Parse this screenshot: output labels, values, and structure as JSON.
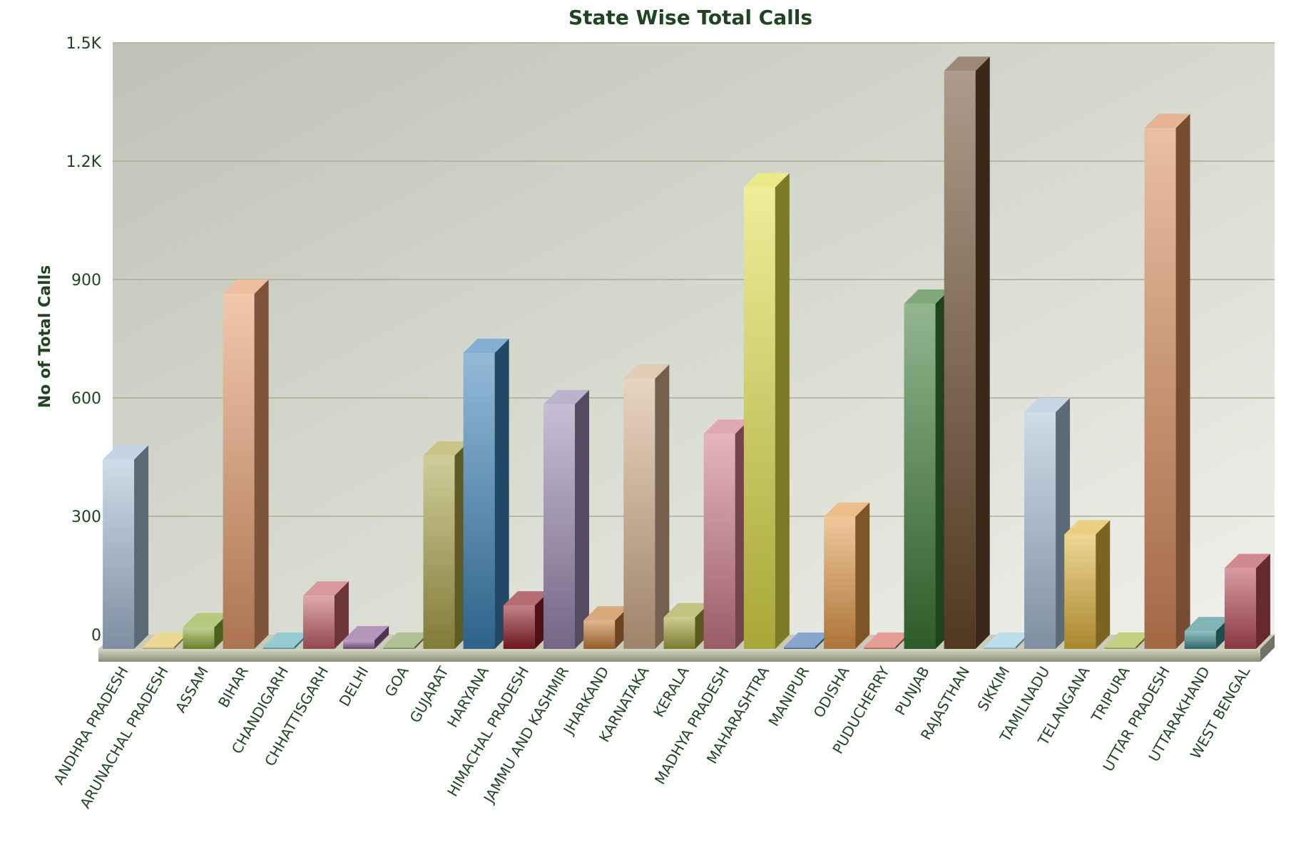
{
  "chart_data": {
    "type": "bar",
    "title": "State Wise Total Calls",
    "xlabel": "",
    "ylabel": "No of Total Calls",
    "ylim": [
      0,
      1500
    ],
    "yticks": [
      "0",
      "300",
      "600",
      "900",
      "1.2K",
      "1.5K"
    ],
    "grid": true,
    "legend": "none",
    "style": "3d-column",
    "categories": [
      "ANDHRA PRADESH",
      "ARUNACHAL PRADESH",
      "ASSAM",
      "BIHAR",
      "CHANDIGARH",
      "CHHATTISGARH",
      "DELHI",
      "GOA",
      "GUJARAT",
      "HARYANA",
      "HIMACHAL PRADESH",
      "JAMMU AND KASHMIR",
      "JHARKAND",
      "KARNATAKA",
      "KERALA",
      "MADHYA PRADESH",
      "MAHARASHTRA",
      "MANIPUR",
      "ODISHA",
      "PUDUCHERRY",
      "PUNJAB",
      "RAJASTHAN",
      "SIKKIM",
      "TAMILNADU",
      "TELANGANA",
      "TRIPURA",
      "UTTAR PRADESH",
      "UTTARAKHAND",
      "WEST BENGAL"
    ],
    "values": [
      480,
      0,
      55,
      900,
      0,
      135,
      22,
      0,
      490,
      750,
      110,
      620,
      72,
      685,
      80,
      545,
      1170,
      0,
      335,
      0,
      875,
      1465,
      0,
      600,
      290,
      5,
      1320,
      45,
      205
    ],
    "colors": [
      "#a6bdd6",
      "#e2c25a",
      "#8caa38",
      "#e59b6c",
      "#5eb0b8",
      "#c4606a",
      "#8a5c98",
      "#86a05e",
      "#aaa448",
      "#3d82b8",
      "#8e1e26",
      "#9a88b0",
      "#c47a36",
      "#d3b08c",
      "#a5a23c",
      "#cf7a86",
      "#e0de48",
      "#4a74b4",
      "#e49a4a",
      "#d8685c",
      "#3a7a34",
      "#6a4a2c",
      "#96cce4",
      "#a8bed6",
      "#e0b43c",
      "#a8b640",
      "#d88a5a",
      "#3e8c90",
      "#b84a56"
    ]
  }
}
